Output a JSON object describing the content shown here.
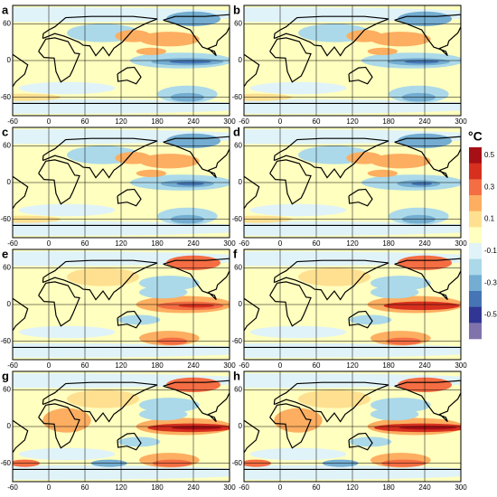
{
  "panels": [
    {
      "label": "a"
    },
    {
      "label": "b"
    },
    {
      "label": "c"
    },
    {
      "label": "d"
    },
    {
      "label": "e"
    },
    {
      "label": "f"
    },
    {
      "label": "g"
    },
    {
      "label": "h"
    }
  ],
  "axes": {
    "xlim": [
      -60,
      300
    ],
    "ylim": [
      -90,
      90
    ],
    "xticks": [
      -60,
      0,
      60,
      120,
      180,
      240,
      300
    ],
    "yticks": [
      60,
      0,
      -60
    ]
  },
  "colorbar": {
    "title": "°C",
    "lim": [
      -0.6,
      0.6
    ],
    "ticks": [
      0.5,
      0.3,
      0.1,
      -0.1,
      -0.3,
      -0.5
    ],
    "colors": [
      "#a50f15",
      "#d7301f",
      "#f46d43",
      "#fdae61",
      "#fee090",
      "#ffffbf",
      "#e0f3f8",
      "#abd9e9",
      "#74add1",
      "#4575b4",
      "#313695",
      "#8073ac"
    ]
  }
}
